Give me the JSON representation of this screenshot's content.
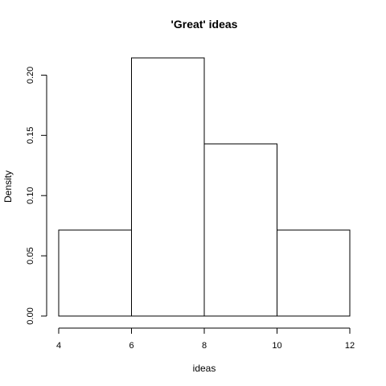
{
  "chart_data": {
    "type": "bar",
    "title": "'Great' ideas",
    "xlabel": "ideas",
    "ylabel": "Density",
    "bins": [
      {
        "x0": 4,
        "x1": 6,
        "value": 0.0714
      },
      {
        "x0": 6,
        "x1": 8,
        "value": 0.2143
      },
      {
        "x0": 8,
        "x1": 10,
        "value": 0.1429
      },
      {
        "x0": 10,
        "x1": 12,
        "value": 0.0714
      }
    ],
    "xlim": [
      4,
      12
    ],
    "ylim": [
      0,
      0.2143
    ],
    "x_ticks": [
      4,
      6,
      8,
      10,
      12
    ],
    "y_ticks": [
      0.0,
      0.05,
      0.1,
      0.15,
      0.2
    ],
    "x_tick_labels": [
      "4",
      "6",
      "8",
      "10",
      "12"
    ],
    "y_tick_labels": [
      "0.00",
      "0.05",
      "0.10",
      "0.15",
      "0.20"
    ],
    "grid": false,
    "legend": "none",
    "bar_fill": "#ffffff",
    "bar_stroke": "#000000"
  }
}
